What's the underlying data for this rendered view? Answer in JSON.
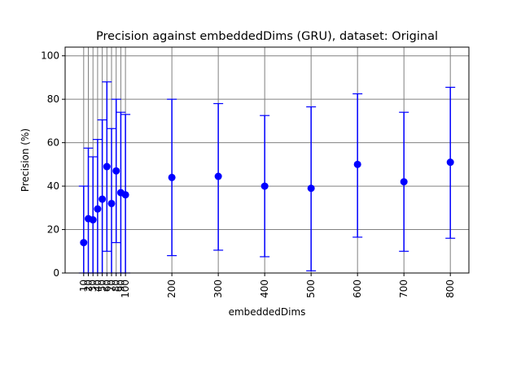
{
  "chart_data": {
    "type": "scatter",
    "title": "Precision against embeddedDims (GRU), dataset: Original",
    "xlabel": "embeddedDims",
    "ylabel": "Precision (%)",
    "xlim": [
      -30,
      840
    ],
    "ylim": [
      0,
      104
    ],
    "xticks": [
      10,
      20,
      30,
      40,
      50,
      60,
      70,
      80,
      90,
      100,
      200,
      300,
      400,
      500,
      600,
      700,
      800
    ],
    "yticks": [
      0,
      20,
      40,
      60,
      80,
      100
    ],
    "grid": true,
    "marker_color": "#0000ff",
    "grid_color": "#808080",
    "points": [
      {
        "x": 10,
        "y": 14.0,
        "lower": 0.0,
        "upper": 40.0
      },
      {
        "x": 20,
        "y": 25.0,
        "lower": 0.0,
        "upper": 57.5
      },
      {
        "x": 30,
        "y": 24.5,
        "lower": 0.0,
        "upper": 53.5
      },
      {
        "x": 40,
        "y": 29.5,
        "lower": 0.0,
        "upper": 61.5
      },
      {
        "x": 50,
        "y": 34.0,
        "lower": 0.0,
        "upper": 70.5
      },
      {
        "x": 60,
        "y": 49.0,
        "lower": 10.0,
        "upper": 88.0
      },
      {
        "x": 70,
        "y": 32.0,
        "lower": 0.0,
        "upper": 66.5
      },
      {
        "x": 80,
        "y": 47.0,
        "lower": 14.0,
        "upper": 80.0
      },
      {
        "x": 90,
        "y": 37.0,
        "lower": 0.0,
        "upper": 74.0
      },
      {
        "x": 100,
        "y": 36.0,
        "lower": 0.0,
        "upper": 73.0
      },
      {
        "x": 200,
        "y": 44.0,
        "lower": 8.0,
        "upper": 80.0
      },
      {
        "x": 300,
        "y": 44.5,
        "lower": 10.5,
        "upper": 78.0
      },
      {
        "x": 400,
        "y": 40.0,
        "lower": 7.5,
        "upper": 72.5
      },
      {
        "x": 500,
        "y": 39.0,
        "lower": 1.0,
        "upper": 76.5
      },
      {
        "x": 600,
        "y": 50.0,
        "lower": 16.5,
        "upper": 82.5
      },
      {
        "x": 700,
        "y": 42.0,
        "lower": 10.0,
        "upper": 74.0
      },
      {
        "x": 800,
        "y": 51.0,
        "lower": 16.0,
        "upper": 85.5
      }
    ]
  }
}
